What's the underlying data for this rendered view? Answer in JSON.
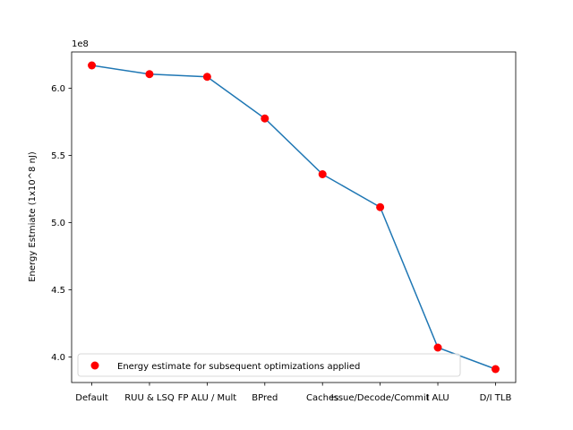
{
  "chart_data": {
    "type": "line",
    "title": "",
    "xlabel": "",
    "ylabel": "Energy Estmiate (1x10^8 nJ)",
    "y_offset_label": "1e8",
    "categories": [
      "Default",
      "RUU & LSQ",
      "FP ALU / Mult",
      "BPred",
      "Caches",
      "Issue/Decode/Commit",
      "I ALU",
      "D/I TLB"
    ],
    "values": [
      6.17,
      6.105,
      6.085,
      5.775,
      5.36,
      5.115,
      4.07,
      3.91
    ],
    "ylim": [
      3.81,
      6.27
    ],
    "yticks": [
      4.0,
      4.5,
      5.0,
      5.5,
      6.0
    ],
    "ytick_labels": [
      "4.0",
      "4.5",
      "5.0",
      "5.5",
      "6.0"
    ],
    "series": [
      {
        "name": "",
        "kind": "line",
        "color": "#1f77b4"
      },
      {
        "name": "Energy estimate for subsequent optimizations applied",
        "kind": "scatter",
        "color": "#ff0000"
      }
    ],
    "legend": "lower-left",
    "grid": false
  }
}
